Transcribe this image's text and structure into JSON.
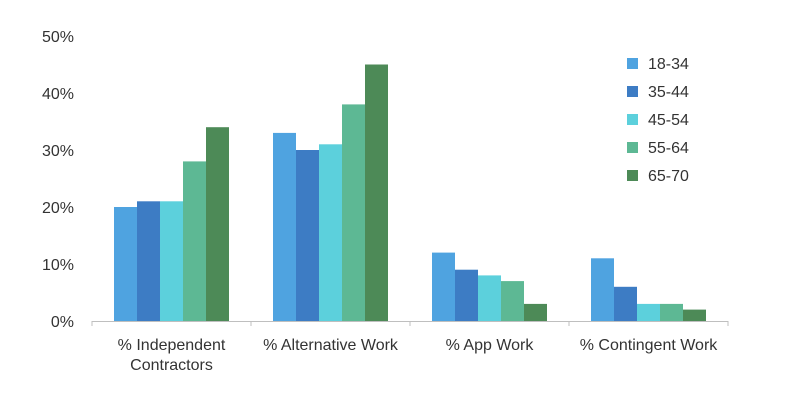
{
  "chart_data": {
    "type": "bar",
    "title": "",
    "xlabel": "",
    "ylabel": "",
    "ylim": [
      0,
      50
    ],
    "y_ticks": [
      "0%",
      "10%",
      "20%",
      "30%",
      "40%",
      "50%"
    ],
    "grid": false,
    "legend_position": "top-right",
    "categories": [
      [
        "% Independent",
        "Contractors"
      ],
      [
        "% Alternative Work"
      ],
      [
        "% App Work"
      ],
      [
        "% Contingent Work"
      ]
    ],
    "series": [
      {
        "name": "18-34",
        "color": "#4fa3e0",
        "values": [
          20,
          33,
          12,
          11
        ]
      },
      {
        "name": "35-44",
        "color": "#3d7cc4",
        "values": [
          21,
          30,
          9,
          6
        ]
      },
      {
        "name": "45-54",
        "color": "#5cd0dc",
        "values": [
          21,
          31,
          8,
          3
        ]
      },
      {
        "name": "55-64",
        "color": "#5db894",
        "values": [
          28,
          38,
          7,
          3
        ]
      },
      {
        "name": "65-70",
        "color": "#4d8a57",
        "values": [
          34,
          45,
          3,
          2
        ]
      }
    ]
  }
}
